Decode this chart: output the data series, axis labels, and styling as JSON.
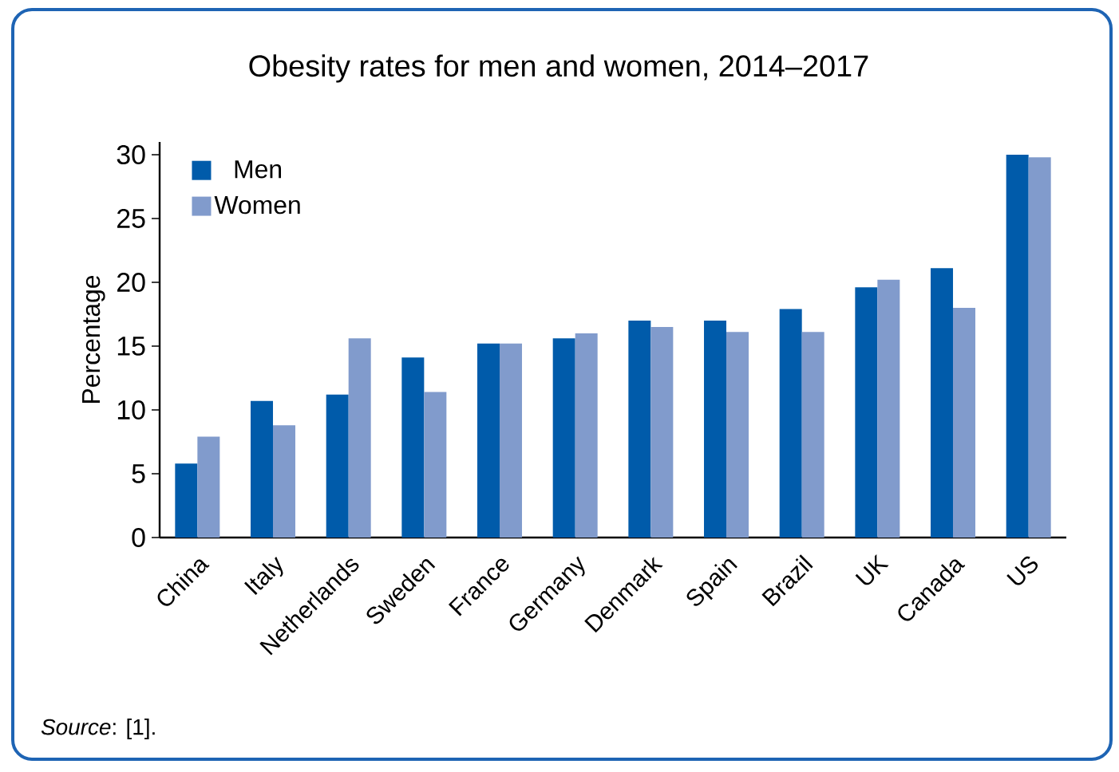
{
  "chart_data": {
    "type": "bar",
    "title": "Obesity rates for men and women, 2014–2017",
    "ylabel": "Percentage",
    "categories": [
      "China",
      "Italy",
      "Netherlands",
      "Sweden",
      "France",
      "Germany",
      "Denmark",
      "Spain",
      "Brazil",
      "UK",
      "Canada",
      "US"
    ],
    "series": [
      {
        "name": "Men",
        "color": "#005baa",
        "values": [
          5.8,
          10.7,
          11.2,
          14.1,
          15.2,
          15.6,
          17.0,
          17.0,
          17.9,
          19.6,
          21.1,
          30.0
        ]
      },
      {
        "name": "Women",
        "color": "#819bcc",
        "values": [
          7.9,
          8.8,
          15.6,
          11.4,
          15.2,
          16.0,
          16.5,
          16.1,
          16.1,
          20.2,
          18.0,
          29.8
        ]
      }
    ],
    "ylim": [
      0,
      31
    ],
    "yticks": [
      0,
      5,
      10,
      15,
      20,
      25,
      30
    ],
    "legend": "top left",
    "grid": false,
    "annotations": [
      "*Source*: [1]."
    ]
  }
}
